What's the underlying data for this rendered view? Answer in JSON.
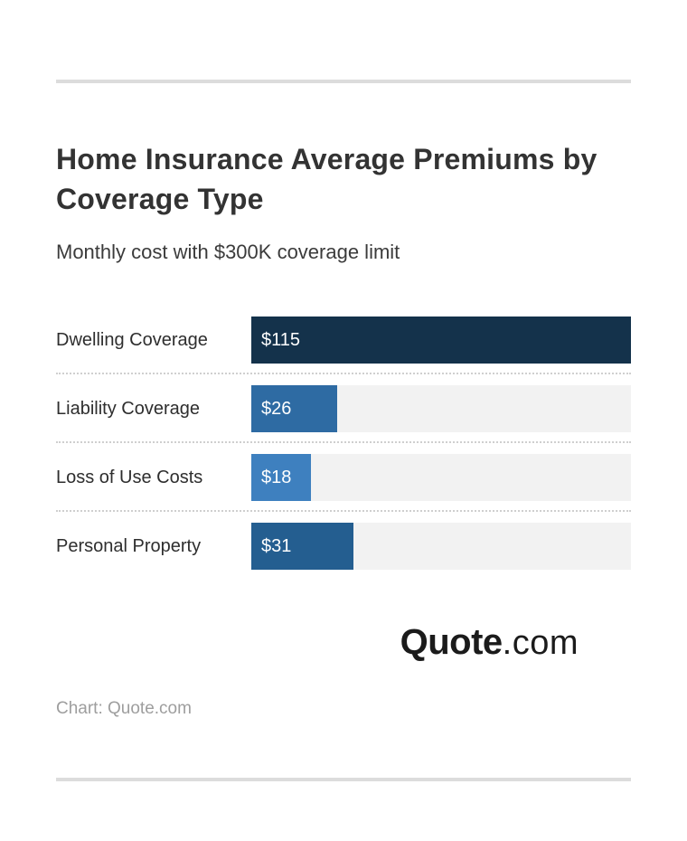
{
  "header": {
    "title": "Home Insurance Average Premiums by Coverage Type",
    "subtitle": "Monthly cost with $300K coverage limit"
  },
  "chart_data": {
    "type": "bar",
    "orientation": "horizontal",
    "title": "Home Insurance Average Premiums by Coverage Type",
    "subtitle": "Monthly cost with $300K coverage limit",
    "categories": [
      "Dwelling Coverage",
      "Liability Coverage",
      "Loss of Use Costs",
      "Personal Property"
    ],
    "values": [
      115,
      26,
      18,
      31
    ],
    "value_labels": [
      "$115",
      "$26",
      "$18",
      "$31"
    ],
    "xlim": [
      0,
      115
    ],
    "grid": false,
    "legend": "none",
    "value_label_position": "inside-start",
    "bar_colors": [
      "#14324b",
      "#2e6ba3",
      "#3e80bf",
      "#245e90"
    ],
    "track_color": "#f2f2f2"
  },
  "rows": [
    {
      "label": "Dwelling Coverage",
      "value": 115,
      "value_label": "$115",
      "color": "#14324b"
    },
    {
      "label": "Liability Coverage",
      "value": 26,
      "value_label": "$26",
      "color": "#2e6ba3"
    },
    {
      "label": "Loss of Use Costs",
      "value": 18,
      "value_label": "$18",
      "color": "#3e80bf"
    },
    {
      "label": "Personal Property",
      "value": 31,
      "value_label": "$31",
      "color": "#245e90"
    }
  ],
  "footer": {
    "logo_primary": "Quote",
    "logo_suffix": ".com",
    "credit": "Chart: Quote.com"
  }
}
